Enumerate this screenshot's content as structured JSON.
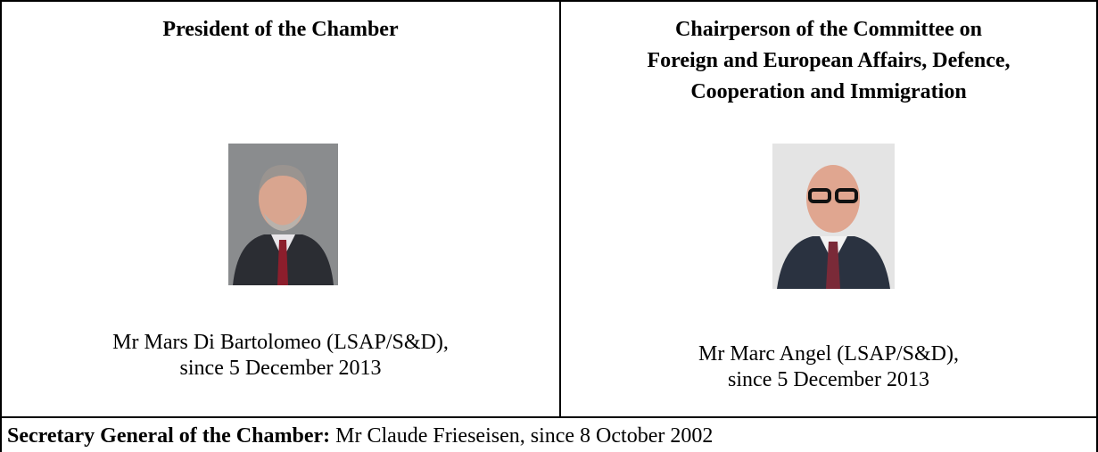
{
  "table": {
    "cells": [
      {
        "title_lines": [
          "President of the Chamber"
        ],
        "name_lines": [
          "Mr Mars Di Bartolomeo (LSAP/S&D),",
          "since 5 December 2013"
        ]
      },
      {
        "title_lines": [
          "Chairperson of the Committee on",
          "Foreign and European Affairs, Defence,",
          "Cooperation and Immigration"
        ],
        "name_lines": [
          "Mr Marc Angel (LSAP/S&D),",
          "since 5 December 2013"
        ]
      }
    ],
    "footer": {
      "label": "Secretary General of the Chamber:",
      "text": "Mr Claude Frieseisen, since 8 October 2002"
    }
  }
}
